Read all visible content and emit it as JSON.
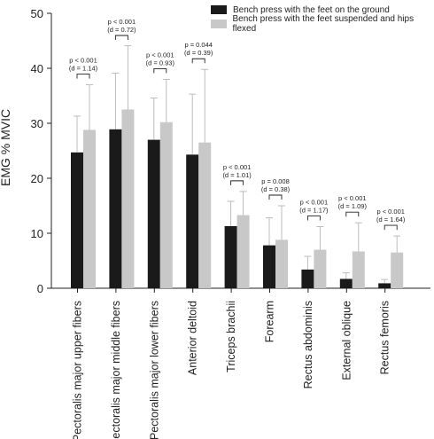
{
  "chart_data": {
    "type": "bar",
    "ylabel": "EMG % MVIC",
    "ylim": [
      0,
      50
    ],
    "yticks": [
      "0",
      "10",
      "20",
      "30",
      "40",
      "50"
    ],
    "categories": [
      "Pectoralis major upper fibers",
      "Pectoralis major middle fibers",
      "Pectoralis major lower fibers",
      "Anterior deltoid",
      "Triceps brachii",
      "Forearm",
      "Rectus abdominis",
      "External oblique",
      "Rectus femoris"
    ],
    "series": [
      {
        "name": "Bench press with the feet on the ground",
        "color": "#1a1a1a",
        "values": [
          24.7,
          28.9,
          27.0,
          24.3,
          11.3,
          7.8,
          3.4,
          1.7,
          0.9
        ],
        "sd_upper": [
          31.3,
          39.1,
          34.6,
          35.3,
          15.8,
          12.8,
          5.8,
          2.8,
          1.6
        ]
      },
      {
        "name": "Bench press with the feet suspended and hips flexed",
        "color": "#c8c8c8",
        "values": [
          28.8,
          32.5,
          30.2,
          26.5,
          13.3,
          8.8,
          7.0,
          6.7,
          6.5
        ],
        "sd_upper": [
          37.0,
          44.1,
          38.0,
          39.8,
          17.6,
          15.0,
          11.2,
          11.9,
          9.5
        ]
      }
    ],
    "annotations": [
      {
        "p": "p < 0.001",
        "d": "(d = 1.14)"
      },
      {
        "p": "p < 0.001",
        "d": "(d = 0.72)"
      },
      {
        "p": "p < 0.001",
        "d": "(d = 0.93)"
      },
      {
        "p": "p = 0.044",
        "d": "(d = 0.39)"
      },
      {
        "p": "p < 0.001",
        "d": "(d = 1.01)"
      },
      {
        "p": "p = 0.008",
        "d": "(d = 0.38)"
      },
      {
        "p": "p < 0.001",
        "d": "(d = 1.17)"
      },
      {
        "p": "p < 0.001",
        "d": "(d = 1.09)"
      },
      {
        "p": "p < 0.001",
        "d": "(d = 1.64)"
      }
    ]
  }
}
